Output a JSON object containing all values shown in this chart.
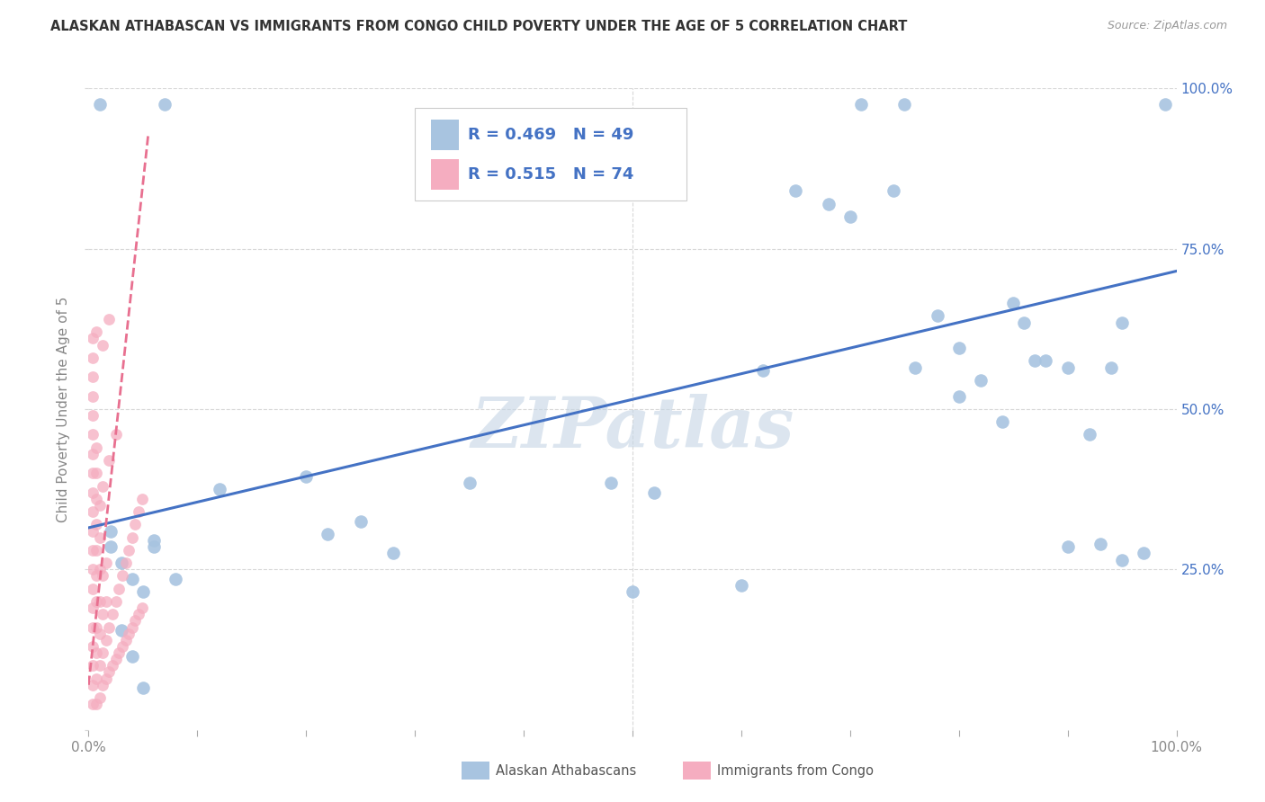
{
  "title": "ALASKAN ATHABASCAN VS IMMIGRANTS FROM CONGO CHILD POVERTY UNDER THE AGE OF 5 CORRELATION CHART",
  "source": "Source: ZipAtlas.com",
  "ylabel": "Child Poverty Under the Age of 5",
  "xlim": [
    0,
    1
  ],
  "ylim": [
    0,
    1
  ],
  "watermark": "ZIPatlas",
  "legend_blue_R": "0.469",
  "legend_blue_N": "49",
  "legend_pink_R": "0.515",
  "legend_pink_N": "74",
  "legend_label_blue": "Alaskan Athabascans",
  "legend_label_pink": "Immigrants from Congo",
  "blue_scatter_x": [
    0.02,
    0.07,
    0.02,
    0.04,
    0.03,
    0.05,
    0.06,
    0.08,
    0.12,
    0.22,
    0.28,
    0.35,
    0.52,
    0.62,
    0.68,
    0.7,
    0.71,
    0.75,
    0.78,
    0.8,
    0.82,
    0.85,
    0.87,
    0.88,
    0.9,
    0.92,
    0.94,
    0.95,
    0.97,
    0.99,
    0.6,
    0.65,
    0.74,
    0.76,
    0.8,
    0.84,
    0.86,
    0.9,
    0.93,
    0.95,
    0.2,
    0.25,
    0.48,
    0.5,
    0.01,
    0.03,
    0.04,
    0.05,
    0.06
  ],
  "blue_scatter_y": [
    0.285,
    0.975,
    0.31,
    0.235,
    0.155,
    0.215,
    0.295,
    0.235,
    0.375,
    0.305,
    0.275,
    0.385,
    0.37,
    0.56,
    0.82,
    0.8,
    0.975,
    0.975,
    0.645,
    0.595,
    0.545,
    0.665,
    0.575,
    0.575,
    0.565,
    0.46,
    0.565,
    0.265,
    0.275,
    0.975,
    0.225,
    0.84,
    0.84,
    0.565,
    0.52,
    0.48,
    0.635,
    0.285,
    0.29,
    0.635,
    0.395,
    0.325,
    0.385,
    0.215,
    0.975,
    0.26,
    0.115,
    0.065,
    0.285
  ],
  "blue_line_x": [
    0.0,
    1.0
  ],
  "blue_line_y": [
    0.315,
    0.715
  ],
  "pink_scatter_x": [
    0.004,
    0.004,
    0.004,
    0.004,
    0.004,
    0.004,
    0.004,
    0.004,
    0.004,
    0.004,
    0.004,
    0.004,
    0.004,
    0.004,
    0.004,
    0.004,
    0.004,
    0.004,
    0.004,
    0.004,
    0.007,
    0.007,
    0.007,
    0.007,
    0.007,
    0.007,
    0.007,
    0.007,
    0.007,
    0.007,
    0.01,
    0.01,
    0.01,
    0.01,
    0.01,
    0.01,
    0.01,
    0.013,
    0.013,
    0.013,
    0.013,
    0.016,
    0.016,
    0.016,
    0.016,
    0.019,
    0.019,
    0.022,
    0.022,
    0.025,
    0.025,
    0.028,
    0.028,
    0.031,
    0.031,
    0.034,
    0.034,
    0.037,
    0.037,
    0.04,
    0.04,
    0.043,
    0.043,
    0.046,
    0.046,
    0.049,
    0.049,
    0.007,
    0.007,
    0.013,
    0.013,
    0.019,
    0.019,
    0.025
  ],
  "pink_scatter_y": [
    0.04,
    0.07,
    0.1,
    0.13,
    0.16,
    0.19,
    0.22,
    0.25,
    0.28,
    0.31,
    0.34,
    0.37,
    0.4,
    0.43,
    0.46,
    0.49,
    0.52,
    0.55,
    0.58,
    0.61,
    0.04,
    0.08,
    0.12,
    0.16,
    0.2,
    0.24,
    0.28,
    0.32,
    0.36,
    0.4,
    0.05,
    0.1,
    0.15,
    0.2,
    0.25,
    0.3,
    0.35,
    0.07,
    0.12,
    0.18,
    0.24,
    0.08,
    0.14,
    0.2,
    0.26,
    0.09,
    0.16,
    0.1,
    0.18,
    0.11,
    0.2,
    0.12,
    0.22,
    0.13,
    0.24,
    0.14,
    0.26,
    0.15,
    0.28,
    0.16,
    0.3,
    0.17,
    0.32,
    0.18,
    0.34,
    0.19,
    0.36,
    0.44,
    0.62,
    0.38,
    0.6,
    0.42,
    0.64,
    0.46
  ],
  "pink_line_x": [
    0.0,
    0.055
  ],
  "pink_line_y": [
    0.07,
    0.93
  ],
  "dot_color_blue": "#a8c4e0",
  "dot_color_pink": "#f5adc0",
  "line_color_blue": "#4472c4",
  "line_color_pink": "#e87090",
  "background_color": "#ffffff",
  "grid_color": "#d8d8d8",
  "title_color": "#333333",
  "source_color": "#999999",
  "watermark_color": "#c5d5e5",
  "right_axis_label_color": "#4472c4",
  "axis_label_color": "#888888"
}
